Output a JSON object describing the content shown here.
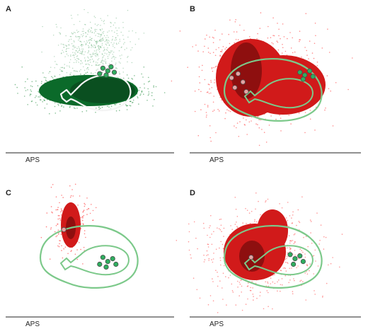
{
  "figure": {
    "background": "#ffffff",
    "colors": {
      "green_dark": "#0b6a2a",
      "green_mid": "#1f8a3b",
      "green_contour": "#7cc98a",
      "red_dense": "#d11a1a",
      "red_core": "#8e0f0f",
      "red_sparse": "#ff3030",
      "contour_white": "#f4f4f4",
      "marker_green": "#2fae5f",
      "marker_pink": "#e6a3a3",
      "marker_edge": "#4b4b4b",
      "axis_line": "#222222"
    }
  },
  "chart_data": [
    {
      "panel": "A",
      "type": "scatter",
      "xlabel": "APS",
      "grid": false,
      "populations": [
        {
          "name": "",
          "color": "#0b6a2a",
          "density": "high",
          "shape": "elongated ellipse with upper diffuse tail"
        }
      ],
      "contours": [
        {
          "color": "#f4f4f4",
          "shape": "teardrop loop around cluster core"
        }
      ],
      "markers": [
        {
          "color": "#2fae5f",
          "x": 0.58,
          "y": 0.42
        },
        {
          "color": "#2fae5f",
          "x": 0.61,
          "y": 0.44
        },
        {
          "color": "#2fae5f",
          "x": 0.63,
          "y": 0.41
        },
        {
          "color": "#2fae5f",
          "x": 0.6,
          "y": 0.47
        },
        {
          "color": "#2fae5f",
          "x": 0.65,
          "y": 0.45
        },
        {
          "color": "#2fae5f",
          "x": 0.56,
          "y": 0.46
        }
      ]
    },
    {
      "panel": "B",
      "type": "scatter",
      "xlabel": "APS",
      "grid": false,
      "populations": [
        {
          "name": "",
          "color": "#d11a1a",
          "density": "high",
          "shape": "broad cloud, dense left core"
        }
      ],
      "contours": [
        {
          "color": "#7cc98a",
          "shape": "outer and inner loops overlaid on red cloud"
        }
      ],
      "markers": [
        {
          "color": "#2fae5f",
          "x": 0.66,
          "y": 0.45
        },
        {
          "color": "#2fae5f",
          "x": 0.69,
          "y": 0.47
        },
        {
          "color": "#2fae5f",
          "x": 0.72,
          "y": 0.44
        },
        {
          "color": "#2fae5f",
          "x": 0.68,
          "y": 0.5
        },
        {
          "color": "#2fae5f",
          "x": 0.74,
          "y": 0.48
        },
        {
          "color": "#e6a3a3",
          "x": 0.28,
          "y": 0.46
        },
        {
          "color": "#e6a3a3",
          "x": 0.31,
          "y": 0.52
        },
        {
          "color": "#e6a3a3",
          "x": 0.26,
          "y": 0.56
        },
        {
          "color": "#e6a3a3",
          "x": 0.33,
          "y": 0.59
        },
        {
          "color": "#e6a3a3",
          "x": 0.24,
          "y": 0.49
        }
      ]
    },
    {
      "panel": "C",
      "type": "scatter",
      "xlabel": "APS",
      "grid": false,
      "populations": [
        {
          "name": "",
          "color": "#d11a1a",
          "density": "medium",
          "shape": "compact vertical cluster upper left"
        }
      ],
      "contours": [
        {
          "color": "#7cc98a",
          "shape": "outer and inner loops on lower right"
        }
      ],
      "markers": [
        {
          "color": "#e6a3a3",
          "x": 0.34,
          "y": 0.38
        },
        {
          "color": "#2fae5f",
          "x": 0.58,
          "y": 0.58
        },
        {
          "color": "#2fae5f",
          "x": 0.61,
          "y": 0.61
        },
        {
          "color": "#2fae5f",
          "x": 0.64,
          "y": 0.59
        },
        {
          "color": "#2fae5f",
          "x": 0.6,
          "y": 0.65
        },
        {
          "color": "#2fae5f",
          "x": 0.66,
          "y": 0.63
        },
        {
          "color": "#2fae5f",
          "x": 0.56,
          "y": 0.63
        }
      ]
    },
    {
      "panel": "D",
      "type": "scatter",
      "xlabel": "APS",
      "grid": false,
      "populations": [
        {
          "name": "",
          "color": "#d11a1a",
          "density": "high",
          "shape": "dense oval center-left with diffuse halo"
        }
      ],
      "contours": [
        {
          "color": "#7cc98a",
          "shape": "outer and inner loops across center"
        }
      ],
      "markers": [
        {
          "color": "#e6a3a3",
          "x": 0.36,
          "y": 0.58
        },
        {
          "color": "#2fae5f",
          "x": 0.6,
          "y": 0.56
        },
        {
          "color": "#2fae5f",
          "x": 0.63,
          "y": 0.59
        },
        {
          "color": "#2fae5f",
          "x": 0.66,
          "y": 0.57
        },
        {
          "color": "#2fae5f",
          "x": 0.62,
          "y": 0.63
        },
        {
          "color": "#2fae5f",
          "x": 0.68,
          "y": 0.61
        }
      ]
    }
  ]
}
